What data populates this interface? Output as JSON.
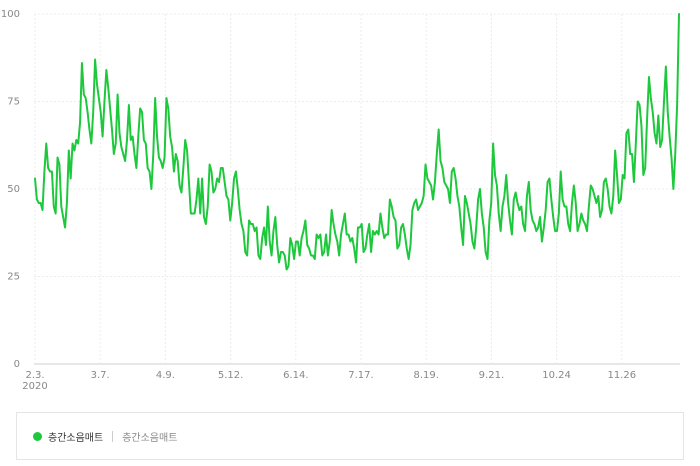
{
  "chart_data": {
    "type": "line",
    "title": "",
    "xlabel": "",
    "ylabel": "",
    "ylim": [
      0,
      100
    ],
    "y_ticks": [
      "0",
      "25",
      "50",
      "75",
      "100"
    ],
    "x_ticks": [
      "2.3.",
      "3.7.",
      "4.9.",
      "5.12.",
      "6.14.",
      "7.17.",
      "8.19.",
      "9.21.",
      "10.24",
      "11.26"
    ],
    "x_year_label": "2020",
    "grid": true,
    "series": [
      {
        "name": "층간소음매트",
        "color": "#1ec83c",
        "values": [
          53,
          47,
          46,
          46,
          44,
          55,
          63,
          56,
          55,
          55,
          45,
          43,
          59,
          57,
          45,
          42,
          39,
          46,
          61,
          53,
          63,
          61,
          64,
          63,
          69,
          86,
          77,
          76,
          72,
          67,
          63,
          72,
          87,
          80,
          76,
          72,
          65,
          75,
          84,
          79,
          73,
          67,
          60,
          63,
          77,
          66,
          62,
          60,
          58,
          64,
          74,
          64,
          65,
          60,
          56,
          65,
          73,
          72,
          64,
          63,
          56,
          55,
          50,
          60,
          76,
          65,
          59,
          58,
          56,
          59,
          76,
          73,
          65,
          62,
          55,
          60,
          58,
          51,
          49,
          56,
          64,
          61,
          52,
          43,
          43,
          43,
          47,
          53,
          43,
          53,
          42,
          40,
          45,
          57,
          55,
          49,
          50,
          53,
          52,
          56,
          56,
          52,
          48,
          47,
          41,
          46,
          53,
          55,
          50,
          44,
          40,
          38,
          32,
          31,
          41,
          40,
          40,
          38,
          39,
          31,
          30,
          36,
          39,
          34,
          45,
          35,
          31,
          38,
          42,
          34,
          29,
          32,
          32,
          31,
          27,
          28,
          36,
          34,
          30,
          35,
          35,
          31,
          36,
          38,
          41,
          34,
          33,
          31,
          31,
          30,
          37,
          36,
          37,
          31,
          32,
          37,
          31,
          35,
          44,
          40,
          37,
          35,
          31,
          37,
          40,
          43,
          37,
          37,
          35,
          36,
          33,
          29,
          39,
          39,
          40,
          32,
          33,
          37,
          40,
          32,
          38,
          37,
          38,
          37,
          43,
          39,
          36,
          37,
          37,
          47,
          45,
          42,
          41,
          33,
          34,
          39,
          40,
          37,
          33,
          30,
          34,
          44,
          46,
          47,
          44,
          45,
          46,
          48,
          57,
          53,
          52,
          51,
          47,
          52,
          60,
          67,
          58,
          56,
          52,
          51,
          50,
          46,
          55,
          56,
          53,
          48,
          45,
          39,
          34,
          48,
          46,
          43,
          40,
          35,
          33,
          39,
          47,
          50,
          43,
          39,
          32,
          30,
          41,
          46,
          63,
          54,
          51,
          43,
          38,
          45,
          48,
          54,
          46,
          41,
          37,
          47,
          49,
          46,
          44,
          45,
          40,
          38,
          48,
          52,
          44,
          41,
          40,
          38,
          39,
          42,
          35,
          39,
          44,
          52,
          53,
          47,
          42,
          38,
          38,
          43,
          55,
          47,
          45,
          45,
          40,
          38,
          46,
          51,
          46,
          38,
          40,
          43,
          41,
          40,
          38,
          45,
          51,
          50,
          48,
          46,
          48,
          42,
          44,
          52,
          53,
          50,
          45,
          43,
          48,
          61,
          54,
          46,
          47,
          54,
          53,
          66,
          67,
          60,
          60,
          52,
          63,
          75,
          74,
          68,
          54,
          56,
          70,
          82,
          76,
          72,
          66,
          63,
          71,
          62,
          64,
          75,
          85,
          72,
          65,
          59,
          50,
          60,
          74,
          100
        ]
      }
    ]
  },
  "legend": {
    "primary_label": "층간소음매트",
    "secondary_label": "층간소음매트"
  }
}
